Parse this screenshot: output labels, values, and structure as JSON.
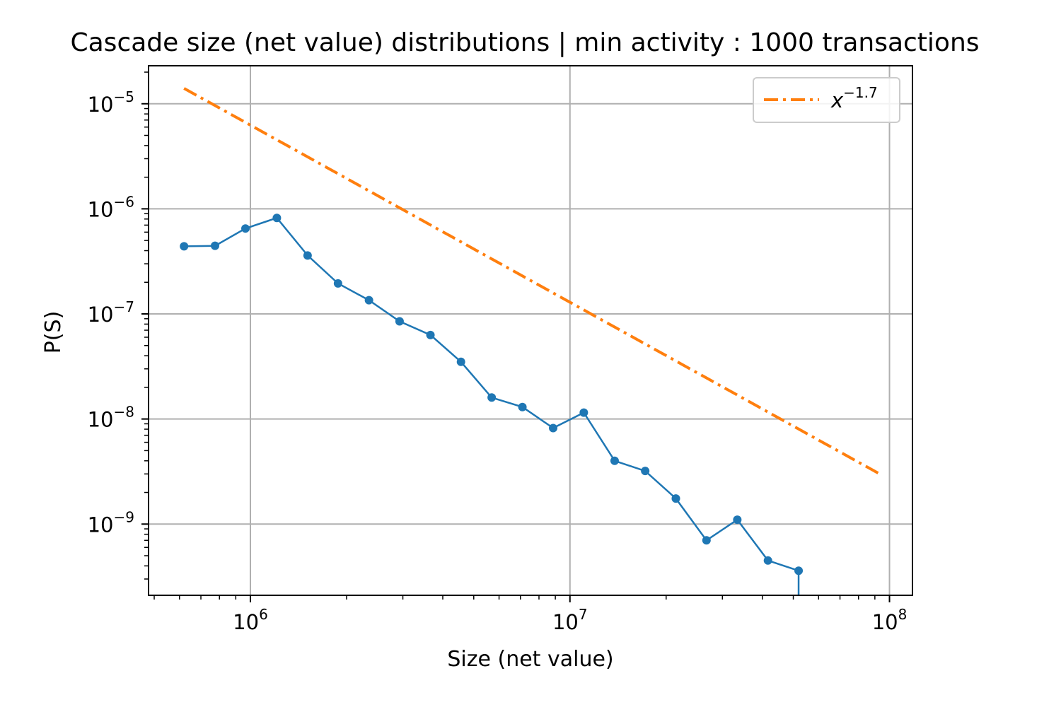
{
  "chart_data": {
    "type": "line",
    "title": "Cascade size (net value) distributions | min activity : 1000 transactions",
    "xlabel": "Size (net value)",
    "ylabel": "P(S)",
    "xscale": "log",
    "yscale": "log",
    "xlim": [
      480000,
      118000000
    ],
    "ylim": [
      2.1e-10,
      2.3e-05
    ],
    "grid": true,
    "legend_position": "top-right",
    "x_ticks": [
      {
        "base": "10",
        "exp": "6",
        "value": 1000000
      },
      {
        "base": "10",
        "exp": "7",
        "value": 10000000
      },
      {
        "base": "10",
        "exp": "8",
        "value": 100000000
      }
    ],
    "y_ticks": [
      {
        "base": "10",
        "exp": "−5",
        "value": 1e-05
      },
      {
        "base": "10",
        "exp": "−6",
        "value": 1e-06
      },
      {
        "base": "10",
        "exp": "−7",
        "value": 1e-07
      },
      {
        "base": "10",
        "exp": "−8",
        "value": 1e-08
      },
      {
        "base": "10",
        "exp": "−9",
        "value": 1e-09
      }
    ],
    "series": [
      {
        "name": "",
        "color": "#1f77b4",
        "marker": "circle",
        "x": [
          620000,
          775000,
          965000,
          1210000,
          1510000,
          1880000,
          2350000,
          2930000,
          3660000,
          4560000,
          5690000,
          7100000,
          8860000,
          11050000,
          13800000,
          17200000,
          21450000,
          26750000,
          33400000,
          41650000,
          51950000
        ],
        "y": [
          4.4e-07,
          4.45e-07,
          6.5e-07,
          8.2e-07,
          3.6e-07,
          1.95e-07,
          1.35e-07,
          8.5e-08,
          6.3e-08,
          3.5e-08,
          1.6e-08,
          1.3e-08,
          8.2e-09,
          1.15e-08,
          4e-09,
          3.2e-09,
          1.75e-09,
          7e-10,
          1.1e-09,
          4.5e-10,
          3.6e-10
        ]
      },
      {
        "name": "x",
        "name_exp": "−1.7",
        "color": "#ff7f0e",
        "dash": "dashdot",
        "x": [
          620000,
          95000000
        ],
        "y": [
          1.4e-05,
          2.9e-09
        ]
      }
    ],
    "drop_segment": {
      "x": 51950000,
      "y_from": 3.6e-10,
      "y_to": 2.1e-10
    }
  }
}
